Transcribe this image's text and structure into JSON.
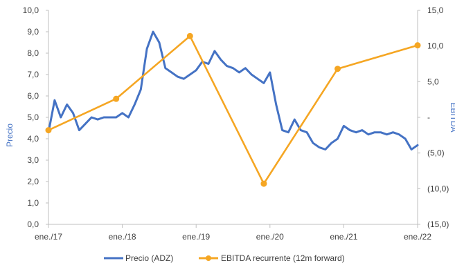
{
  "chart_data": {
    "type": "line",
    "ylabel": "Precio",
    "y2label": "EBITDA",
    "x_ticks": [
      "ene./17",
      "ene./18",
      "ene./19",
      "ene./20",
      "ene./21",
      "ene./22"
    ],
    "y_ticks": [
      "0,0",
      "1,0",
      "2,0",
      "3,0",
      "4,0",
      "5,0",
      "6,0",
      "7,0",
      "8,0",
      "9,0",
      "10,0"
    ],
    "y2_ticks": [
      "(15,0)",
      "(10,0)",
      "(5,0)",
      "-",
      "5,0",
      "10,0",
      "15,0"
    ],
    "ylim": [
      0,
      10
    ],
    "y2lim": [
      -15,
      15
    ],
    "xlim": [
      "2017-01",
      "2022-01"
    ],
    "grid": false,
    "legend": "bottom",
    "series": [
      {
        "name": "Precio (ADZ)",
        "axis": "left",
        "color": "#4472C4",
        "x": [
          "2017-01",
          "2017-02",
          "2017-03",
          "2017-04",
          "2017-05",
          "2017-06",
          "2017-07",
          "2017-08",
          "2017-09",
          "2017-10",
          "2017-11",
          "2017-12",
          "2018-01",
          "2018-02",
          "2018-03",
          "2018-04",
          "2018-05",
          "2018-06",
          "2018-07",
          "2018-08",
          "2018-09",
          "2018-10",
          "2018-11",
          "2018-12",
          "2019-01",
          "2019-02",
          "2019-03",
          "2019-04",
          "2019-05",
          "2019-06",
          "2019-07",
          "2019-08",
          "2019-09",
          "2019-10",
          "2019-11",
          "2019-12",
          "2020-01",
          "2020-02",
          "2020-03",
          "2020-04",
          "2020-05",
          "2020-06",
          "2020-07",
          "2020-08",
          "2020-09",
          "2020-10",
          "2020-11",
          "2020-12",
          "2021-01",
          "2021-02",
          "2021-03",
          "2021-04",
          "2021-05",
          "2021-06",
          "2021-07",
          "2021-08",
          "2021-09",
          "2021-10",
          "2021-11",
          "2021-12",
          "2022-01"
        ],
        "values": [
          4.3,
          5.8,
          5.0,
          5.6,
          5.2,
          4.4,
          4.7,
          5.0,
          4.9,
          5.0,
          5.0,
          5.0,
          5.2,
          5.0,
          5.6,
          6.3,
          8.2,
          9.0,
          8.5,
          7.3,
          7.1,
          6.9,
          6.8,
          7.0,
          7.2,
          7.6,
          7.5,
          8.1,
          7.7,
          7.4,
          7.3,
          7.1,
          7.3,
          7.0,
          6.8,
          6.6,
          7.1,
          5.6,
          4.4,
          4.3,
          4.9,
          4.4,
          4.3,
          3.8,
          3.6,
          3.5,
          3.8,
          4.0,
          4.6,
          4.4,
          4.3,
          4.4,
          4.2,
          4.3,
          4.3,
          4.2,
          4.3,
          4.2,
          4.0,
          3.5,
          3.7
        ]
      },
      {
        "name": "EBITDA recurrente (12m forward)",
        "axis": "right",
        "color": "#F5A623",
        "x": [
          "2017-01",
          "2017-12",
          "2018-12",
          "2019-12",
          "2020-12",
          "2022-01"
        ],
        "values": [
          -1.8,
          2.6,
          11.4,
          -9.3,
          6.8,
          10.1
        ]
      }
    ]
  }
}
